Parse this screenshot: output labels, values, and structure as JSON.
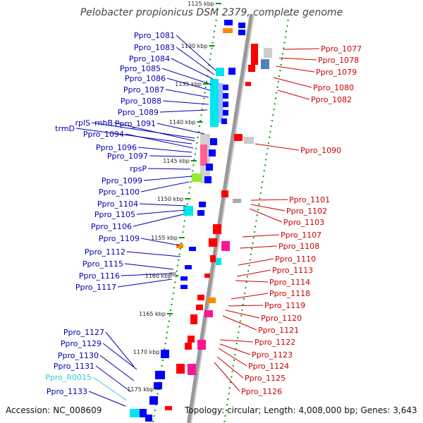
{
  "title": "Pelobacter propionicus DSM 2379, complete genome",
  "accession": "Accession: NC_008609",
  "summary": "Topology: circular; Length: 4,008,000 bp; Genes: 3,643",
  "colors": {
    "left_label": "#0000b0",
    "right_label": "#cc0000",
    "rna_label": "#33c8d8",
    "backbone": "#888888",
    "ticks": "#009900"
  },
  "kbp_ticks": [
    "1125 kbp",
    "1130 kbp",
    "1135 kbp",
    "1140 kbp",
    "1145 kbp",
    "1150 kbp",
    "1155 kbp",
    "1160 kbp",
    "1165 kbp",
    "1170 kbp",
    "1175 kbp"
  ],
  "left_genes": [
    "Ppro_1081",
    "Ppro_1083",
    "Ppro_1084",
    "Ppro_1085",
    "Ppro_1086",
    "Ppro_1087",
    "Ppro_1088",
    "Ppro_1089",
    "Ppro_1091",
    "rplS",
    "rnhB",
    "trmD",
    "Ppro_1094",
    "Ppro_1096",
    "Ppro_1097",
    "rpsP",
    "Ppro_1099",
    "Ppro_1100",
    "Ppro_1104",
    "Ppro_1105",
    "Ppro_1106",
    "Ppro_1109",
    "Ppro_1112",
    "Ppro_1115",
    "Ppro_1116",
    "Ppro_1117",
    "Ppro_1127",
    "Ppro_1129",
    "Ppro_1130",
    "Ppro_1131",
    "Ppro_R0015",
    "Ppro_1133"
  ],
  "right_genes": [
    "Ppro_1077",
    "Ppro_1078",
    "Ppro_1079",
    "Ppro_1080",
    "Ppro_1082",
    "Ppro_1090",
    "Ppro_1101",
    "Ppro_1102",
    "Ppro_1103",
    "Ppro_1107",
    "Ppro_1108",
    "Ppro_1110",
    "Ppro_1113",
    "Ppro_1114",
    "Ppro_1118",
    "Ppro_1119",
    "Ppro_1120",
    "Ppro_1121",
    "Ppro_1122",
    "Ppro_1123",
    "Ppro_1124",
    "Ppro_1125",
    "Ppro_1126"
  ]
}
